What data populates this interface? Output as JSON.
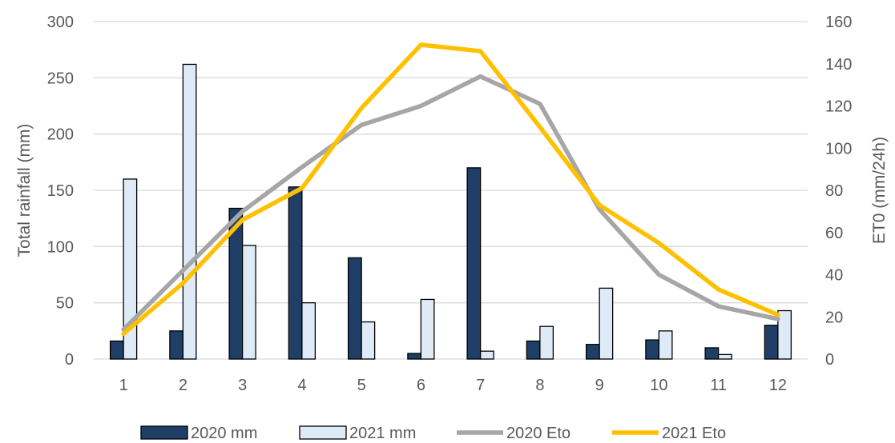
{
  "chart_data": {
    "type": "bar",
    "categories": [
      "1",
      "2",
      "3",
      "4",
      "5",
      "6",
      "7",
      "8",
      "9",
      "10",
      "11",
      "12"
    ],
    "series": [
      {
        "name": "2020 mm",
        "type": "bar",
        "axis": "left",
        "color": "#1f3f66",
        "border": "#000000",
        "values": [
          16,
          25,
          134,
          153,
          90,
          5,
          170,
          16,
          13,
          17,
          10,
          30
        ]
      },
      {
        "name": "2021 mm",
        "type": "bar",
        "axis": "left",
        "color": "#deebf7",
        "border": "#000000",
        "values": [
          160,
          262,
          101,
          50,
          33,
          53,
          7,
          29,
          63,
          25,
          4,
          43
        ]
      },
      {
        "name": "2020 Eto",
        "type": "line",
        "axis": "right",
        "color": "#a6a6a6",
        "values": [
          14,
          42,
          70,
          91,
          111,
          120,
          134,
          121,
          71,
          40,
          25,
          19
        ]
      },
      {
        "name": "2021 Eto",
        "type": "line",
        "axis": "right",
        "color": "#ffc000",
        "values": [
          12,
          36,
          66,
          81,
          119,
          149,
          146,
          110,
          73,
          55,
          33,
          21
        ]
      }
    ],
    "ylabel": "Total rainfall (mm)",
    "y2label": "ET0 (mm/24h)",
    "ylim": [
      0,
      300
    ],
    "yticks": [
      0,
      50,
      100,
      150,
      200,
      250,
      300
    ],
    "y2lim": [
      0,
      160
    ],
    "y2ticks": [
      0,
      20,
      40,
      60,
      80,
      100,
      120,
      140,
      160
    ],
    "grid": true,
    "legend_position": "bottom"
  }
}
